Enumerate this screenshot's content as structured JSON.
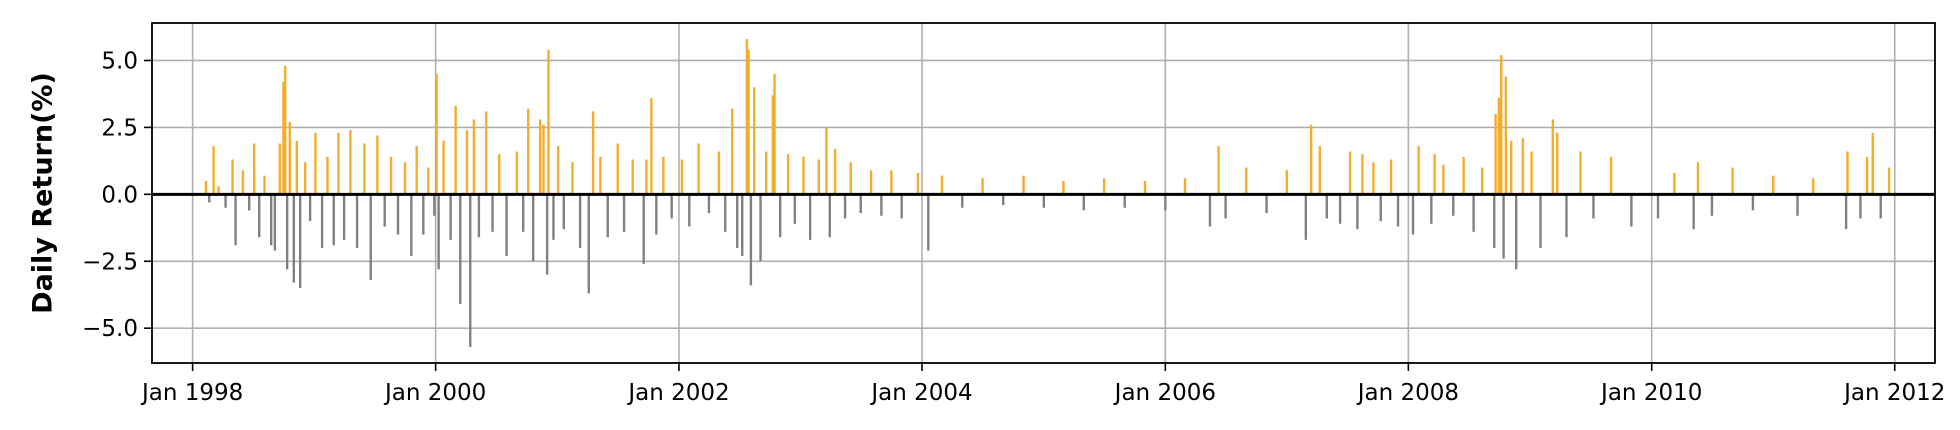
{
  "chart_data": {
    "type": "bar",
    "title": "",
    "xlabel": "",
    "ylabel": "Daily Return(%)",
    "x_axis": "date",
    "xlim": [
      "1997-09-01",
      "2012-05-01"
    ],
    "ylim": [
      -6.3,
      6.4
    ],
    "grid": true,
    "legend": "none",
    "x_ticks": [
      {
        "date": "1998-01-01",
        "label": "Jan 1998"
      },
      {
        "date": "2000-01-01",
        "label": "Jan 2000"
      },
      {
        "date": "2002-01-01",
        "label": "Jan 2002"
      },
      {
        "date": "2004-01-01",
        "label": "Jan 2004"
      },
      {
        "date": "2006-01-01",
        "label": "Jan 2006"
      },
      {
        "date": "2008-01-01",
        "label": "Jan 2008"
      },
      {
        "date": "2010-01-01",
        "label": "Jan 2010"
      },
      {
        "date": "2012-01-01",
        "label": "Jan 2012"
      }
    ],
    "y_ticks": [
      {
        "value": 5.0,
        "label": "5.0"
      },
      {
        "value": 2.5,
        "label": "2.5"
      },
      {
        "value": 0.0,
        "label": "0.0"
      },
      {
        "value": -2.5,
        "label": "−2.5"
      },
      {
        "value": -5.0,
        "label": "−5.0"
      }
    ],
    "colors": {
      "positive": "#f5ac2a",
      "negative": "#808080",
      "zero_line": "#000000",
      "grid": "#b0b0b0"
    },
    "series": [
      {
        "values": [
          [
            "1998-02-10",
            0.5
          ],
          [
            "1998-02-20",
            -0.3
          ],
          [
            "1998-03-05",
            1.8
          ],
          [
            "1998-03-20",
            0.3
          ],
          [
            "1998-04-10",
            -0.5
          ],
          [
            "1998-05-01",
            1.3
          ],
          [
            "1998-05-10",
            -1.9
          ],
          [
            "1998-06-01",
            0.9
          ],
          [
            "1998-06-20",
            -0.6
          ],
          [
            "1998-07-05",
            1.9
          ],
          [
            "1998-07-20",
            -1.6
          ],
          [
            "1998-08-05",
            0.7
          ],
          [
            "1998-08-25",
            -1.9
          ],
          [
            "1998-09-05",
            -2.1
          ],
          [
            "1998-09-20",
            1.9
          ],
          [
            "1998-10-01",
            4.2
          ],
          [
            "1998-10-06",
            4.8
          ],
          [
            "1998-10-12",
            -2.8
          ],
          [
            "1998-10-20",
            2.7
          ],
          [
            "1998-11-01",
            -3.3
          ],
          [
            "1998-11-10",
            2.0
          ],
          [
            "1998-11-20",
            -3.5
          ],
          [
            "1998-12-05",
            1.2
          ],
          [
            "1998-12-20",
            -1.0
          ],
          [
            "1999-01-05",
            2.3
          ],
          [
            "1999-01-25",
            -2.0
          ],
          [
            "1999-02-10",
            1.4
          ],
          [
            "1999-03-01",
            -1.9
          ],
          [
            "1999-03-15",
            2.3
          ],
          [
            "1999-04-01",
            -1.7
          ],
          [
            "1999-04-20",
            2.4
          ],
          [
            "1999-05-10",
            -2.0
          ],
          [
            "1999-06-01",
            1.9
          ],
          [
            "1999-06-20",
            -3.2
          ],
          [
            "1999-07-10",
            2.2
          ],
          [
            "1999-08-01",
            -1.2
          ],
          [
            "1999-08-20",
            1.4
          ],
          [
            "1999-09-10",
            -1.5
          ],
          [
            "1999-10-01",
            1.2
          ],
          [
            "1999-10-20",
            -2.3
          ],
          [
            "1999-11-05",
            1.8
          ],
          [
            "1999-11-25",
            -1.5
          ],
          [
            "1999-12-10",
            1.0
          ],
          [
            "1999-12-28",
            -0.8
          ],
          [
            "2000-01-04",
            4.5
          ],
          [
            "2000-01-10",
            -2.8
          ],
          [
            "2000-01-25",
            2.0
          ],
          [
            "2000-02-15",
            -1.7
          ],
          [
            "2000-03-01",
            3.3
          ],
          [
            "2000-03-15",
            -4.1
          ],
          [
            "2000-04-04",
            2.4
          ],
          [
            "2000-04-14",
            -5.7
          ],
          [
            "2000-04-25",
            2.8
          ],
          [
            "2000-05-10",
            -1.6
          ],
          [
            "2000-06-01",
            3.1
          ],
          [
            "2000-06-20",
            -1.4
          ],
          [
            "2000-07-10",
            1.5
          ],
          [
            "2000-08-01",
            -2.3
          ],
          [
            "2000-09-01",
            1.6
          ],
          [
            "2000-09-20",
            -1.4
          ],
          [
            "2000-10-05",
            3.2
          ],
          [
            "2000-10-20",
            -2.5
          ],
          [
            "2000-11-10",
            2.8
          ],
          [
            "2000-11-20",
            2.6
          ],
          [
            "2000-12-01",
            -3.0
          ],
          [
            "2000-12-05",
            5.4
          ],
          [
            "2000-12-20",
            -1.7
          ],
          [
            "2001-01-03",
            1.8
          ],
          [
            "2001-01-20",
            -1.3
          ],
          [
            "2001-02-15",
            1.2
          ],
          [
            "2001-03-10",
            -2.0
          ],
          [
            "2001-04-05",
            -3.7
          ],
          [
            "2001-04-18",
            3.1
          ],
          [
            "2001-05-10",
            1.4
          ],
          [
            "2001-06-01",
            -1.6
          ],
          [
            "2001-07-01",
            1.9
          ],
          [
            "2001-07-20",
            -1.4
          ],
          [
            "2001-08-15",
            1.3
          ],
          [
            "2001-09-17",
            -2.6
          ],
          [
            "2001-09-25",
            1.3
          ],
          [
            "2001-10-10",
            3.6
          ],
          [
            "2001-10-25",
            -1.5
          ],
          [
            "2001-11-15",
            1.4
          ],
          [
            "2001-12-10",
            -0.9
          ],
          [
            "2002-01-10",
            1.3
          ],
          [
            "2002-02-01",
            -1.2
          ],
          [
            "2002-03-01",
            1.9
          ],
          [
            "2002-04-01",
            -0.7
          ],
          [
            "2002-05-01",
            1.6
          ],
          [
            "2002-05-20",
            -1.4
          ],
          [
            "2002-06-10",
            3.2
          ],
          [
            "2002-06-25",
            -2.0
          ],
          [
            "2002-07-10",
            -2.3
          ],
          [
            "2002-07-24",
            5.8
          ],
          [
            "2002-07-29",
            5.4
          ],
          [
            "2002-08-05",
            -3.4
          ],
          [
            "2002-08-15",
            4.0
          ],
          [
            "2002-09-03",
            -2.5
          ],
          [
            "2002-09-20",
            1.6
          ],
          [
            "2002-10-10",
            3.7
          ],
          [
            "2002-10-15",
            4.5
          ],
          [
            "2002-11-01",
            -1.6
          ],
          [
            "2002-11-25",
            1.5
          ],
          [
            "2002-12-15",
            -1.1
          ],
          [
            "2003-01-10",
            1.4
          ],
          [
            "2003-01-30",
            -1.7
          ],
          [
            "2003-02-25",
            1.3
          ],
          [
            "2003-03-20",
            2.5
          ],
          [
            "2003-03-30",
            -1.6
          ],
          [
            "2003-04-15",
            1.7
          ],
          [
            "2003-05-15",
            -0.9
          ],
          [
            "2003-06-01",
            1.2
          ],
          [
            "2003-07-01",
            -0.7
          ],
          [
            "2003-08-01",
            0.9
          ],
          [
            "2003-09-01",
            -0.8
          ],
          [
            "2003-10-01",
            0.9
          ],
          [
            "2003-11-01",
            -0.9
          ],
          [
            "2003-12-20",
            0.8
          ],
          [
            "2004-01-20",
            -2.1
          ],
          [
            "2004-03-01",
            0.7
          ],
          [
            "2004-05-01",
            -0.5
          ],
          [
            "2004-07-01",
            0.6
          ],
          [
            "2004-09-01",
            -0.4
          ],
          [
            "2004-11-01",
            0.7
          ],
          [
            "2005-01-01",
            -0.5
          ],
          [
            "2005-03-01",
            0.5
          ],
          [
            "2005-05-01",
            -0.6
          ],
          [
            "2005-07-01",
            0.6
          ],
          [
            "2005-09-01",
            -0.5
          ],
          [
            "2005-11-01",
            0.5
          ],
          [
            "2006-01-01",
            -0.6
          ],
          [
            "2006-03-01",
            0.6
          ],
          [
            "2006-05-15",
            -1.2
          ],
          [
            "2006-06-10",
            1.8
          ],
          [
            "2006-07-01",
            -0.9
          ],
          [
            "2006-09-01",
            1.0
          ],
          [
            "2006-11-01",
            -0.7
          ],
          [
            "2007-01-01",
            0.9
          ],
          [
            "2007-02-27",
            -1.7
          ],
          [
            "2007-03-15",
            2.6
          ],
          [
            "2007-04-10",
            1.8
          ],
          [
            "2007-05-01",
            -0.9
          ],
          [
            "2007-06-10",
            -1.1
          ],
          [
            "2007-07-10",
            1.6
          ],
          [
            "2007-08-01",
            -1.3
          ],
          [
            "2007-08-16",
            1.5
          ],
          [
            "2007-09-18",
            1.2
          ],
          [
            "2007-10-10",
            -1.0
          ],
          [
            "2007-11-10",
            1.3
          ],
          [
            "2007-12-01",
            -1.2
          ],
          [
            "2008-01-15",
            -1.5
          ],
          [
            "2008-02-01",
            1.8
          ],
          [
            "2008-03-10",
            -1.1
          ],
          [
            "2008-03-20",
            1.5
          ],
          [
            "2008-04-15",
            1.1
          ],
          [
            "2008-05-15",
            -0.8
          ],
          [
            "2008-06-15",
            1.4
          ],
          [
            "2008-07-15",
            -1.4
          ],
          [
            "2008-08-10",
            1.0
          ],
          [
            "2008-09-15",
            -2.0
          ],
          [
            "2008-09-19",
            3.0
          ],
          [
            "2008-09-29",
            3.6
          ],
          [
            "2008-10-06",
            5.2
          ],
          [
            "2008-10-13",
            -2.4
          ],
          [
            "2008-10-20",
            4.4
          ],
          [
            "2008-11-05",
            2.0
          ],
          [
            "2008-11-20",
            -2.8
          ],
          [
            "2008-12-10",
            2.1
          ],
          [
            "2009-01-05",
            1.6
          ],
          [
            "2009-02-01",
            -2.0
          ],
          [
            "2009-03-10",
            2.8
          ],
          [
            "2009-03-23",
            2.3
          ],
          [
            "2009-04-20",
            -1.6
          ],
          [
            "2009-06-01",
            1.6
          ],
          [
            "2009-07-10",
            -0.9
          ],
          [
            "2009-09-01",
            1.4
          ],
          [
            "2009-11-01",
            -1.2
          ],
          [
            "2010-01-20",
            -0.9
          ],
          [
            "2010-03-10",
            0.8
          ],
          [
            "2010-05-07",
            -1.3
          ],
          [
            "2010-05-20",
            1.2
          ],
          [
            "2010-07-01",
            -0.8
          ],
          [
            "2010-09-01",
            1.0
          ],
          [
            "2010-11-01",
            -0.6
          ],
          [
            "2011-01-01",
            0.7
          ],
          [
            "2011-03-15",
            -0.8
          ],
          [
            "2011-05-01",
            0.6
          ],
          [
            "2011-08-08",
            -1.3
          ],
          [
            "2011-08-12",
            1.6
          ],
          [
            "2011-09-20",
            -0.9
          ],
          [
            "2011-10-10",
            1.4
          ],
          [
            "2011-10-27",
            2.3
          ],
          [
            "2011-11-20",
            -0.9
          ],
          [
            "2011-12-15",
            1.0
          ]
        ]
      }
    ]
  }
}
